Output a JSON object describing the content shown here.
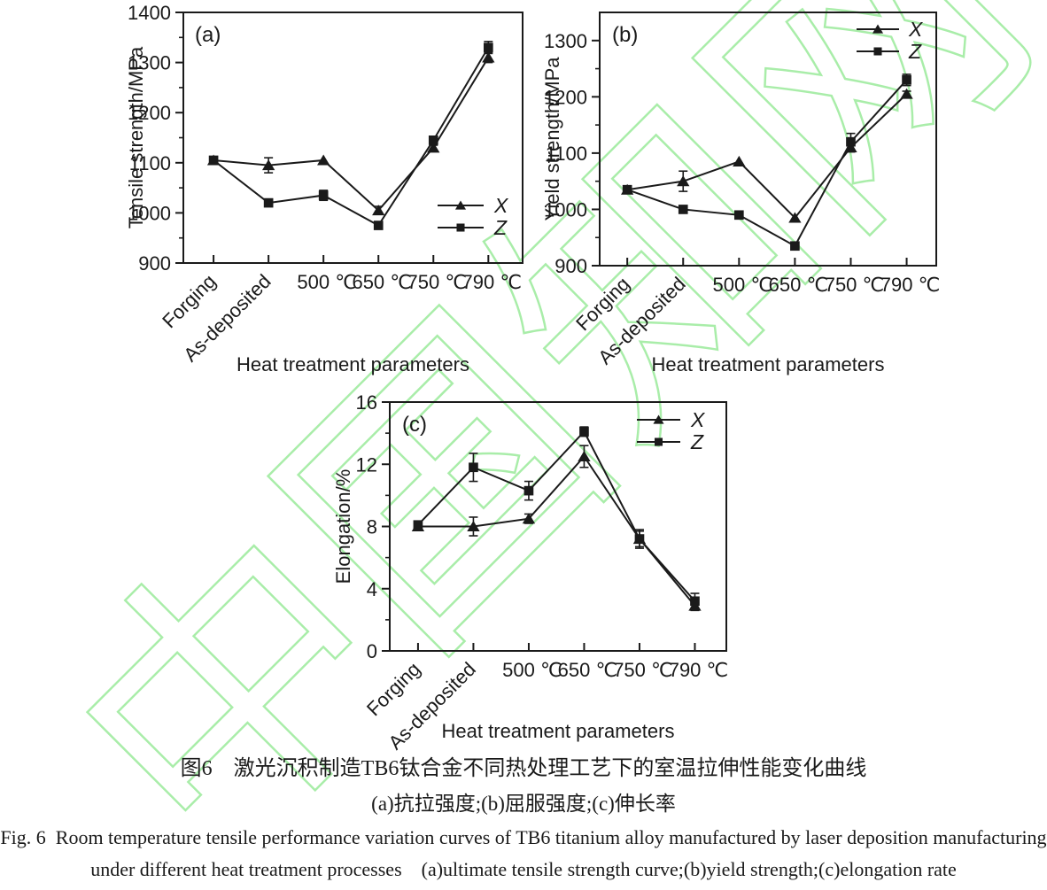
{
  "watermark": {
    "text": "中国知网",
    "color": "#a9eda9"
  },
  "caption": {
    "cn_line1": "图6　激光沉积制造TB6钛合金不同热处理工艺下的室温拉伸性能变化曲线",
    "cn_line2": "(a)抗拉强度;(b)屈服强度;(c)伸长率",
    "en_line1": "Fig. 6 Room temperature tensile performance variation curves of TB6 titanium alloy manufactured by laser deposition manufacturing",
    "en_line2": "under different heat treatment processes  (a)ultimate tensile strength curve;(b)yield strength;(c)elongation rate"
  },
  "chart_data": [
    {
      "id": "a",
      "type": "line",
      "panel_label": "(a)",
      "xlabel": "Heat treatment parameters",
      "ylabel": "Tensile strength/MPa",
      "categories": [
        "Forging",
        "As-deposited",
        "500 ℃",
        "650 ℃",
        "750 ℃",
        "790 ℃"
      ],
      "ylim": [
        900,
        1400
      ],
      "yticks": [
        900,
        1000,
        1100,
        1200,
        1300,
        1400
      ],
      "minor_step": 50,
      "grid": false,
      "legend_position": "inside lower-right",
      "series": [
        {
          "name": "X",
          "marker": "triangle",
          "values": [
            1105,
            1095,
            1105,
            1005,
            1130,
            1310
          ],
          "errors": [
            0,
            15,
            0,
            8,
            5,
            10
          ]
        },
        {
          "name": "Z",
          "marker": "square",
          "values": [
            1105,
            1020,
            1035,
            975,
            1145,
            1330
          ],
          "errors": [
            0,
            0,
            10,
            0,
            5,
            12
          ]
        }
      ]
    },
    {
      "id": "b",
      "type": "line",
      "panel_label": "(b)",
      "xlabel": "Heat treatment parameters",
      "ylabel": "Yield strength/MPa",
      "categories": [
        "Forging",
        "As-deposited",
        "500 ℃",
        "650 ℃",
        "750 ℃",
        "790 ℃"
      ],
      "ylim": [
        900,
        1350
      ],
      "yticks": [
        900,
        1000,
        1100,
        1200,
        1300
      ],
      "minor_step": 50,
      "grid": false,
      "legend_position": "inside top-right",
      "series": [
        {
          "name": "X",
          "marker": "triangle",
          "values": [
            1035,
            1050,
            1085,
            985,
            1110,
            1205
          ],
          "errors": [
            0,
            18,
            0,
            0,
            8,
            5
          ]
        },
        {
          "name": "Z",
          "marker": "square",
          "values": [
            1035,
            1000,
            990,
            935,
            1120,
            1230
          ],
          "errors": [
            0,
            0,
            0,
            0,
            15,
            10
          ]
        }
      ]
    },
    {
      "id": "c",
      "type": "line",
      "panel_label": "(c)",
      "xlabel": "Heat treatment parameters",
      "ylabel": "Elongation/%",
      "categories": [
        "Forging",
        "As-deposited",
        "500 ℃",
        "650 ℃",
        "750 ℃",
        "790 ℃"
      ],
      "ylim": [
        0,
        16
      ],
      "yticks": [
        0,
        4,
        8,
        12,
        16
      ],
      "minor_step": 2,
      "grid": false,
      "legend_position": "inside top-right",
      "series": [
        {
          "name": "X",
          "marker": "triangle",
          "values": [
            8.0,
            8.0,
            8.5,
            12.5,
            7.2,
            2.9
          ],
          "errors": [
            0.2,
            0.6,
            0.3,
            0.7,
            0.6,
            0.3
          ]
        },
        {
          "name": "Z",
          "marker": "square",
          "values": [
            8.1,
            11.8,
            10.3,
            14.1,
            7.2,
            3.2
          ],
          "errors": [
            0.2,
            0.9,
            0.6,
            0.3,
            0.5,
            0.5
          ]
        }
      ]
    }
  ]
}
